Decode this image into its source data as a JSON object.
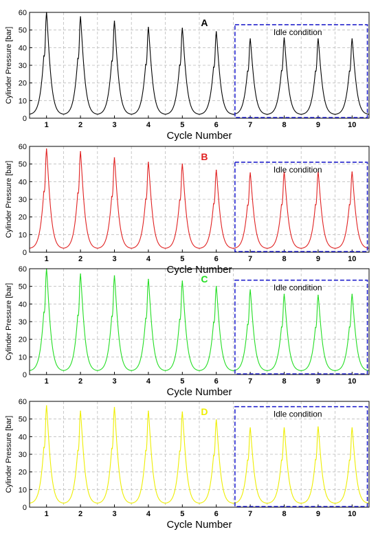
{
  "figure": {
    "background": "#ffffff"
  },
  "chart_data": [
    {
      "type": "line",
      "panel_label": "A",
      "color": "#000000",
      "xlabel": "Cycle Number",
      "ylabel": "Cylinder Pressure [bar]",
      "xlim": [
        0.5,
        10.5
      ],
      "ylim": [
        0,
        60
      ],
      "x_ticks": [
        1,
        2,
        3,
        4,
        5,
        6,
        7,
        8,
        9,
        10
      ],
      "y_ticks": [
        0,
        10,
        20,
        30,
        40,
        50,
        60
      ],
      "grid": true,
      "cycle_peaks": [
        {
          "cycle": 1,
          "peak": 60
        },
        {
          "cycle": 2,
          "peak": 57.5
        },
        {
          "cycle": 3,
          "peak": 55
        },
        {
          "cycle": 4,
          "peak": 51.5
        },
        {
          "cycle": 5,
          "peak": 51
        },
        {
          "cycle": 6,
          "peak": 49
        },
        {
          "cycle": 7,
          "peak": 45
        },
        {
          "cycle": 8,
          "peak": 45.5
        },
        {
          "cycle": 9,
          "peak": 45
        },
        {
          "cycle": 10,
          "peak": 45
        }
      ],
      "baseline": 2,
      "annotation": {
        "text": "Idle condition",
        "x_range": [
          6.55,
          10.45
        ],
        "y_range": [
          0,
          53
        ],
        "color": "#2222cc"
      }
    },
    {
      "type": "line",
      "panel_label": "B",
      "color": "#e02020",
      "xlabel": "Cycle Number",
      "ylabel": "Cylinder Pressure [bar]",
      "xlim": [
        0.5,
        10.5
      ],
      "ylim": [
        0,
        60
      ],
      "x_ticks": [
        1,
        2,
        3,
        4,
        5,
        6,
        7,
        8,
        9,
        10
      ],
      "y_ticks": [
        0,
        10,
        20,
        30,
        40,
        50,
        60
      ],
      "grid": true,
      "cycle_peaks": [
        {
          "cycle": 1,
          "peak": 58.5
        },
        {
          "cycle": 2,
          "peak": 57
        },
        {
          "cycle": 3,
          "peak": 53.5
        },
        {
          "cycle": 4,
          "peak": 51
        },
        {
          "cycle": 5,
          "peak": 50
        },
        {
          "cycle": 6,
          "peak": 46.5
        },
        {
          "cycle": 7,
          "peak": 45
        },
        {
          "cycle": 8,
          "peak": 45.5
        },
        {
          "cycle": 9,
          "peak": 45.5
        },
        {
          "cycle": 10,
          "peak": 45.5
        }
      ],
      "baseline": 2,
      "annotation": {
        "text": "Idle condition",
        "x_range": [
          6.55,
          10.45
        ],
        "y_range": [
          0,
          51
        ],
        "color": "#2222cc"
      }
    },
    {
      "type": "line",
      "panel_label": "C",
      "color": "#22dd22",
      "xlabel": "Cycle Number",
      "ylabel": "Cylinder Pressure [bar]",
      "xlim": [
        0.5,
        10.5
      ],
      "ylim": [
        0,
        60
      ],
      "x_ticks": [
        1,
        2,
        3,
        4,
        5,
        6,
        7,
        8,
        9,
        10
      ],
      "y_ticks": [
        0,
        10,
        20,
        30,
        40,
        50,
        60
      ],
      "grid": true,
      "cycle_peaks": [
        {
          "cycle": 1,
          "peak": 60
        },
        {
          "cycle": 2,
          "peak": 57
        },
        {
          "cycle": 3,
          "peak": 56
        },
        {
          "cycle": 4,
          "peak": 54
        },
        {
          "cycle": 5,
          "peak": 53
        },
        {
          "cycle": 6,
          "peak": 50
        },
        {
          "cycle": 7,
          "peak": 48
        },
        {
          "cycle": 8,
          "peak": 45.5
        },
        {
          "cycle": 9,
          "peak": 45
        },
        {
          "cycle": 10,
          "peak": 45.5
        }
      ],
      "baseline": 2,
      "annotation": {
        "text": "Idle condition",
        "x_range": [
          6.55,
          10.45
        ],
        "y_range": [
          0,
          53.5
        ],
        "color": "#2222cc"
      }
    },
    {
      "type": "line",
      "panel_label": "D",
      "color": "#eeee00",
      "xlabel": "Cycle Number",
      "ylabel": "Cylinder Pressure [bar]",
      "xlim": [
        0.5,
        10.5
      ],
      "ylim": [
        0,
        60
      ],
      "x_ticks": [
        1,
        2,
        3,
        4,
        5,
        6,
        7,
        8,
        9,
        10
      ],
      "y_ticks": [
        0,
        10,
        20,
        30,
        40,
        50,
        60
      ],
      "grid": true,
      "cycle_peaks": [
        {
          "cycle": 1,
          "peak": 57.5
        },
        {
          "cycle": 2,
          "peak": 54.5
        },
        {
          "cycle": 3,
          "peak": 56.5
        },
        {
          "cycle": 4,
          "peak": 54.5
        },
        {
          "cycle": 5,
          "peak": 54
        },
        {
          "cycle": 6,
          "peak": 49.5
        },
        {
          "cycle": 7,
          "peak": 45
        },
        {
          "cycle": 8,
          "peak": 45
        },
        {
          "cycle": 9,
          "peak": 45.5
        },
        {
          "cycle": 10,
          "peak": 45
        }
      ],
      "baseline": 2,
      "annotation": {
        "text": "Idle condition",
        "x_range": [
          6.55,
          10.45
        ],
        "y_range": [
          0,
          57
        ],
        "color": "#2222cc"
      }
    }
  ]
}
